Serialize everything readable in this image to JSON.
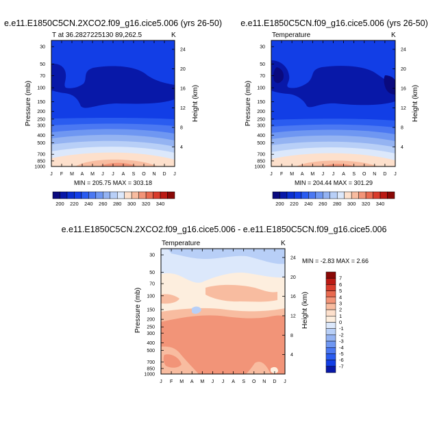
{
  "chart_data": [
    {
      "type": "heatmap",
      "title": "e.e11.E1850C5CN.2XCO2.f09_g16.cice5.006 (yrs 26-50)",
      "subtitle_left": "T at 36.2827225130 89,262.5",
      "subtitle_right": "K",
      "xlabel": "",
      "ylabel": "Pressure (mb)",
      "ylabel_right": "Height (km)",
      "x_tick_labels": [
        "J",
        "F",
        "M",
        "A",
        "M",
        "J",
        "J",
        "A",
        "S",
        "O",
        "N",
        "D",
        "J"
      ],
      "pressure_ticks": [
        30,
        50,
        70,
        100,
        150,
        200,
        250,
        300,
        400,
        500,
        700,
        850,
        1000
      ],
      "height_ticks": [
        4,
        8,
        12,
        16,
        20,
        24
      ],
      "stats": "MIN = 205.75 MAX = 303.18",
      "colorbar_labels": [
        "200",
        "220",
        "240",
        "260",
        "280",
        "300",
        "320",
        "340"
      ],
      "levels": [
        200,
        210,
        220,
        230,
        240,
        250,
        260,
        270,
        280,
        290,
        300,
        310,
        320,
        330,
        340
      ],
      "min": 205.75,
      "max": 303.18
    },
    {
      "type": "heatmap",
      "title": "e.e11.E1850C5CN.f09_g16.cice5.006 (yrs 26-50)",
      "subtitle_left": "Temperature",
      "subtitle_right": "K",
      "xlabel": "",
      "ylabel": "Pressure (mb)",
      "ylabel_right": "Height (km)",
      "x_tick_labels": [
        "J",
        "F",
        "M",
        "A",
        "M",
        "J",
        "J",
        "A",
        "S",
        "O",
        "N",
        "D",
        "J"
      ],
      "pressure_ticks": [
        30,
        50,
        70,
        100,
        150,
        200,
        250,
        300,
        400,
        500,
        700,
        850,
        1000
      ],
      "height_ticks": [
        4,
        8,
        12,
        16,
        20,
        24
      ],
      "stats": "MIN = 204.44 MAX = 301.29",
      "colorbar_labels": [
        "200",
        "220",
        "240",
        "260",
        "280",
        "300",
        "320",
        "340"
      ],
      "levels": [
        200,
        210,
        220,
        230,
        240,
        250,
        260,
        270,
        280,
        290,
        300,
        310,
        320,
        330,
        340
      ],
      "min": 204.44,
      "max": 301.29
    },
    {
      "type": "heatmap",
      "title": "e.e11.E1850C5CN.2XCO2.f09_g16.cice5.006 - e.e11.E1850C5CN.f09_g16.cice5.006",
      "subtitle_left": "Temperature",
      "subtitle_right": "K",
      "xlabel": "",
      "ylabel": "Pressure (mb)",
      "ylabel_right": "Height (km)",
      "x_tick_labels": [
        "J",
        "F",
        "M",
        "A",
        "M",
        "J",
        "J",
        "A",
        "S",
        "O",
        "N",
        "D",
        "J"
      ],
      "pressure_ticks": [
        30,
        50,
        70,
        100,
        150,
        200,
        250,
        300,
        400,
        500,
        700,
        850,
        1000
      ],
      "height_ticks": [
        4,
        8,
        12,
        16,
        20,
        24
      ],
      "stats": "MIN = -2.83 MAX = 2.66",
      "colorbar_labels": [
        "7",
        "6",
        "5",
        "4",
        "3",
        "2",
        "1",
        "0",
        "-1",
        "-2",
        "-3",
        "-4",
        "-5",
        "-6",
        "-7"
      ],
      "levels": [
        -7,
        -6,
        -5,
        -4,
        -3,
        -2,
        -1,
        0,
        1,
        2,
        3,
        4,
        5,
        6,
        7
      ],
      "min": -2.83,
      "max": 2.66
    }
  ],
  "colors": {
    "temp_scale": [
      "#0a0a7e",
      "#0818a8",
      "#0a2fd0",
      "#123ee6",
      "#2a5cf0",
      "#4b78f2",
      "#6f97f2",
      "#94b3f2",
      "#b8cff7",
      "#dce8fb",
      "#fde0cc",
      "#f8bca0",
      "#f29478",
      "#e96a50",
      "#d93c2c",
      "#bb1a14",
      "#8a0806"
    ],
    "diff_scale": [
      "#8a0806",
      "#bb1a14",
      "#d93c2c",
      "#e96a50",
      "#f29478",
      "#f8bca0",
      "#fde0cc",
      "#fdeede",
      "#dce8fb",
      "#b8cff7",
      "#94b3f2",
      "#6f97f2",
      "#4b78f2",
      "#2a5cf0",
      "#123ee6",
      "#0818a8"
    ]
  }
}
